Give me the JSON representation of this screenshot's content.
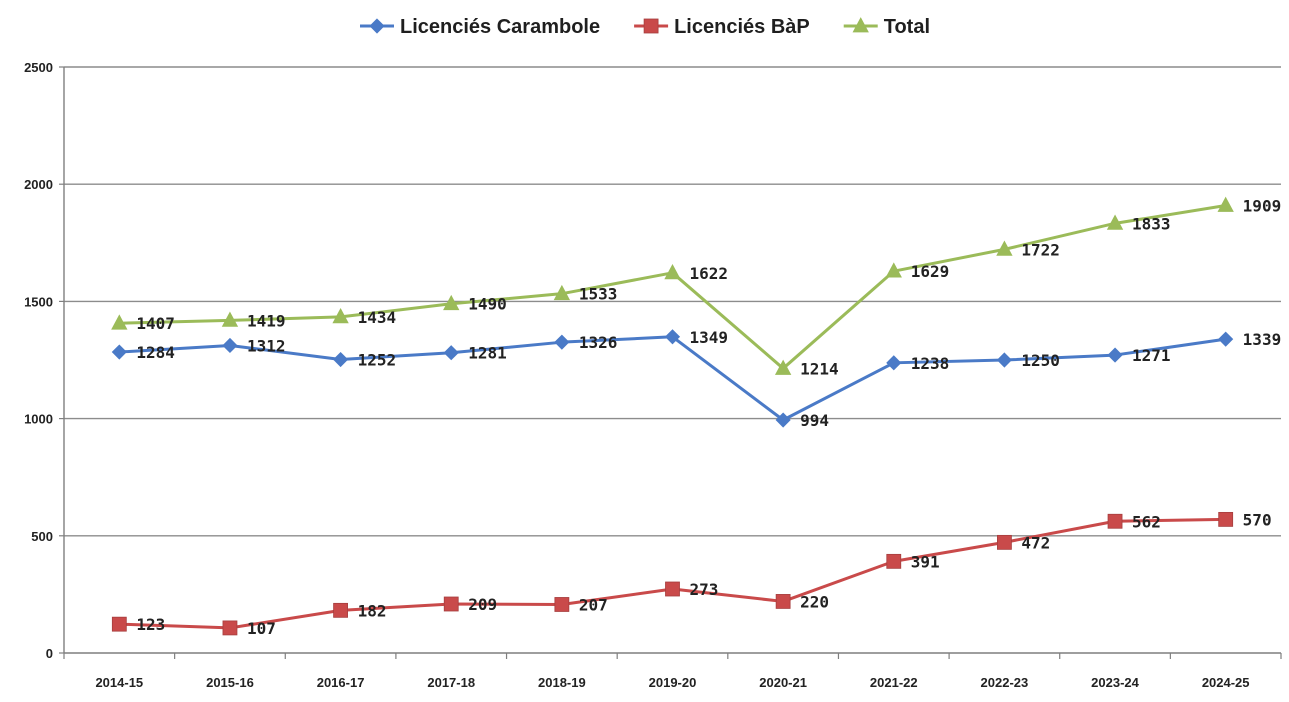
{
  "chart_data": {
    "type": "line",
    "categories": [
      "2014-15",
      "2015-16",
      "2016-17",
      "2017-18",
      "2018-19",
      "2019-20",
      "2020-21",
      "2021-22",
      "2022-23",
      "2023-24",
      "2024-25"
    ],
    "series": [
      {
        "name": "Licenciés Carambole",
        "values": [
          1284,
          1312,
          1252,
          1281,
          1326,
          1349,
          994,
          1238,
          1250,
          1271,
          1339
        ],
        "color": "#4a7ac7",
        "marker": "diamond"
      },
      {
        "name": "Licenciés BàP",
        "values": [
          123,
          107,
          182,
          209,
          207,
          273,
          220,
          391,
          472,
          562,
          570
        ],
        "color": "#c94a4a",
        "marker": "square"
      },
      {
        "name": "Total",
        "values": [
          1407,
          1419,
          1434,
          1490,
          1533,
          1622,
          1214,
          1629,
          1722,
          1833,
          1909
        ],
        "color": "#9bbb59",
        "marker": "triangle"
      }
    ],
    "ylim": [
      0,
      2500
    ],
    "yticks": [
      0,
      500,
      1000,
      1500,
      2000,
      2500
    ],
    "grid": true,
    "legend_position": "top"
  }
}
